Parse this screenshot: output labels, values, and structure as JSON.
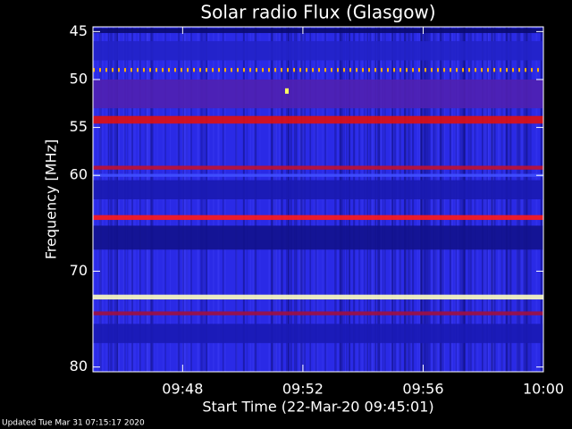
{
  "chart_data": {
    "type": "spectrogram",
    "title": "Solar radio Flux (Glasgow)",
    "y_label": "Frequency [MHz]",
    "x_label": "Start Time (22-Mar-20 09:45:01)",
    "footer": "Updated Tue Mar 31 07:15:17 2020",
    "xlim": [
      "09:45:01",
      "10:00:00"
    ],
    "xticks": [
      "09:48",
      "09:52",
      "09:56",
      "10:00"
    ],
    "ylim": [
      80.5,
      44.5
    ],
    "yticks": [
      45,
      50,
      55,
      60,
      70,
      80
    ],
    "background_color": "#2a2ae6",
    "bands": [
      {
        "frequency": 44.9,
        "width": 0.5,
        "color": "#0a0a70"
      },
      {
        "frequency": 47.0,
        "width": 2.0,
        "color": "#2222c8"
      },
      {
        "frequency": 49.0,
        "width": 0.4,
        "color": "#ffb000",
        "style": "dotted"
      },
      {
        "frequency": 51.5,
        "width": 3.0,
        "color": "#5020b0"
      },
      {
        "frequency": 54.2,
        "width": 0.8,
        "color": "#e01010"
      },
      {
        "frequency": 59.2,
        "width": 0.4,
        "color": "#c01030"
      },
      {
        "frequency": 60.0,
        "width": 0.3,
        "color": "#4050ff"
      },
      {
        "frequency": 61.5,
        "width": 2.0,
        "color": "#1a1ab0"
      },
      {
        "frequency": 64.4,
        "width": 0.5,
        "color": "#ff1818"
      },
      {
        "frequency": 66.5,
        "width": 2.5,
        "color": "#12128c"
      },
      {
        "frequency": 72.7,
        "width": 0.5,
        "color": "#ffffc0"
      },
      {
        "frequency": 74.4,
        "width": 0.4,
        "color": "#a01040"
      },
      {
        "frequency": 76.5,
        "width": 2.0,
        "color": "#1a1ab4"
      }
    ],
    "points": [
      {
        "x": "09:51:28",
        "y": 51.2,
        "color": "#ffff60"
      }
    ]
  }
}
